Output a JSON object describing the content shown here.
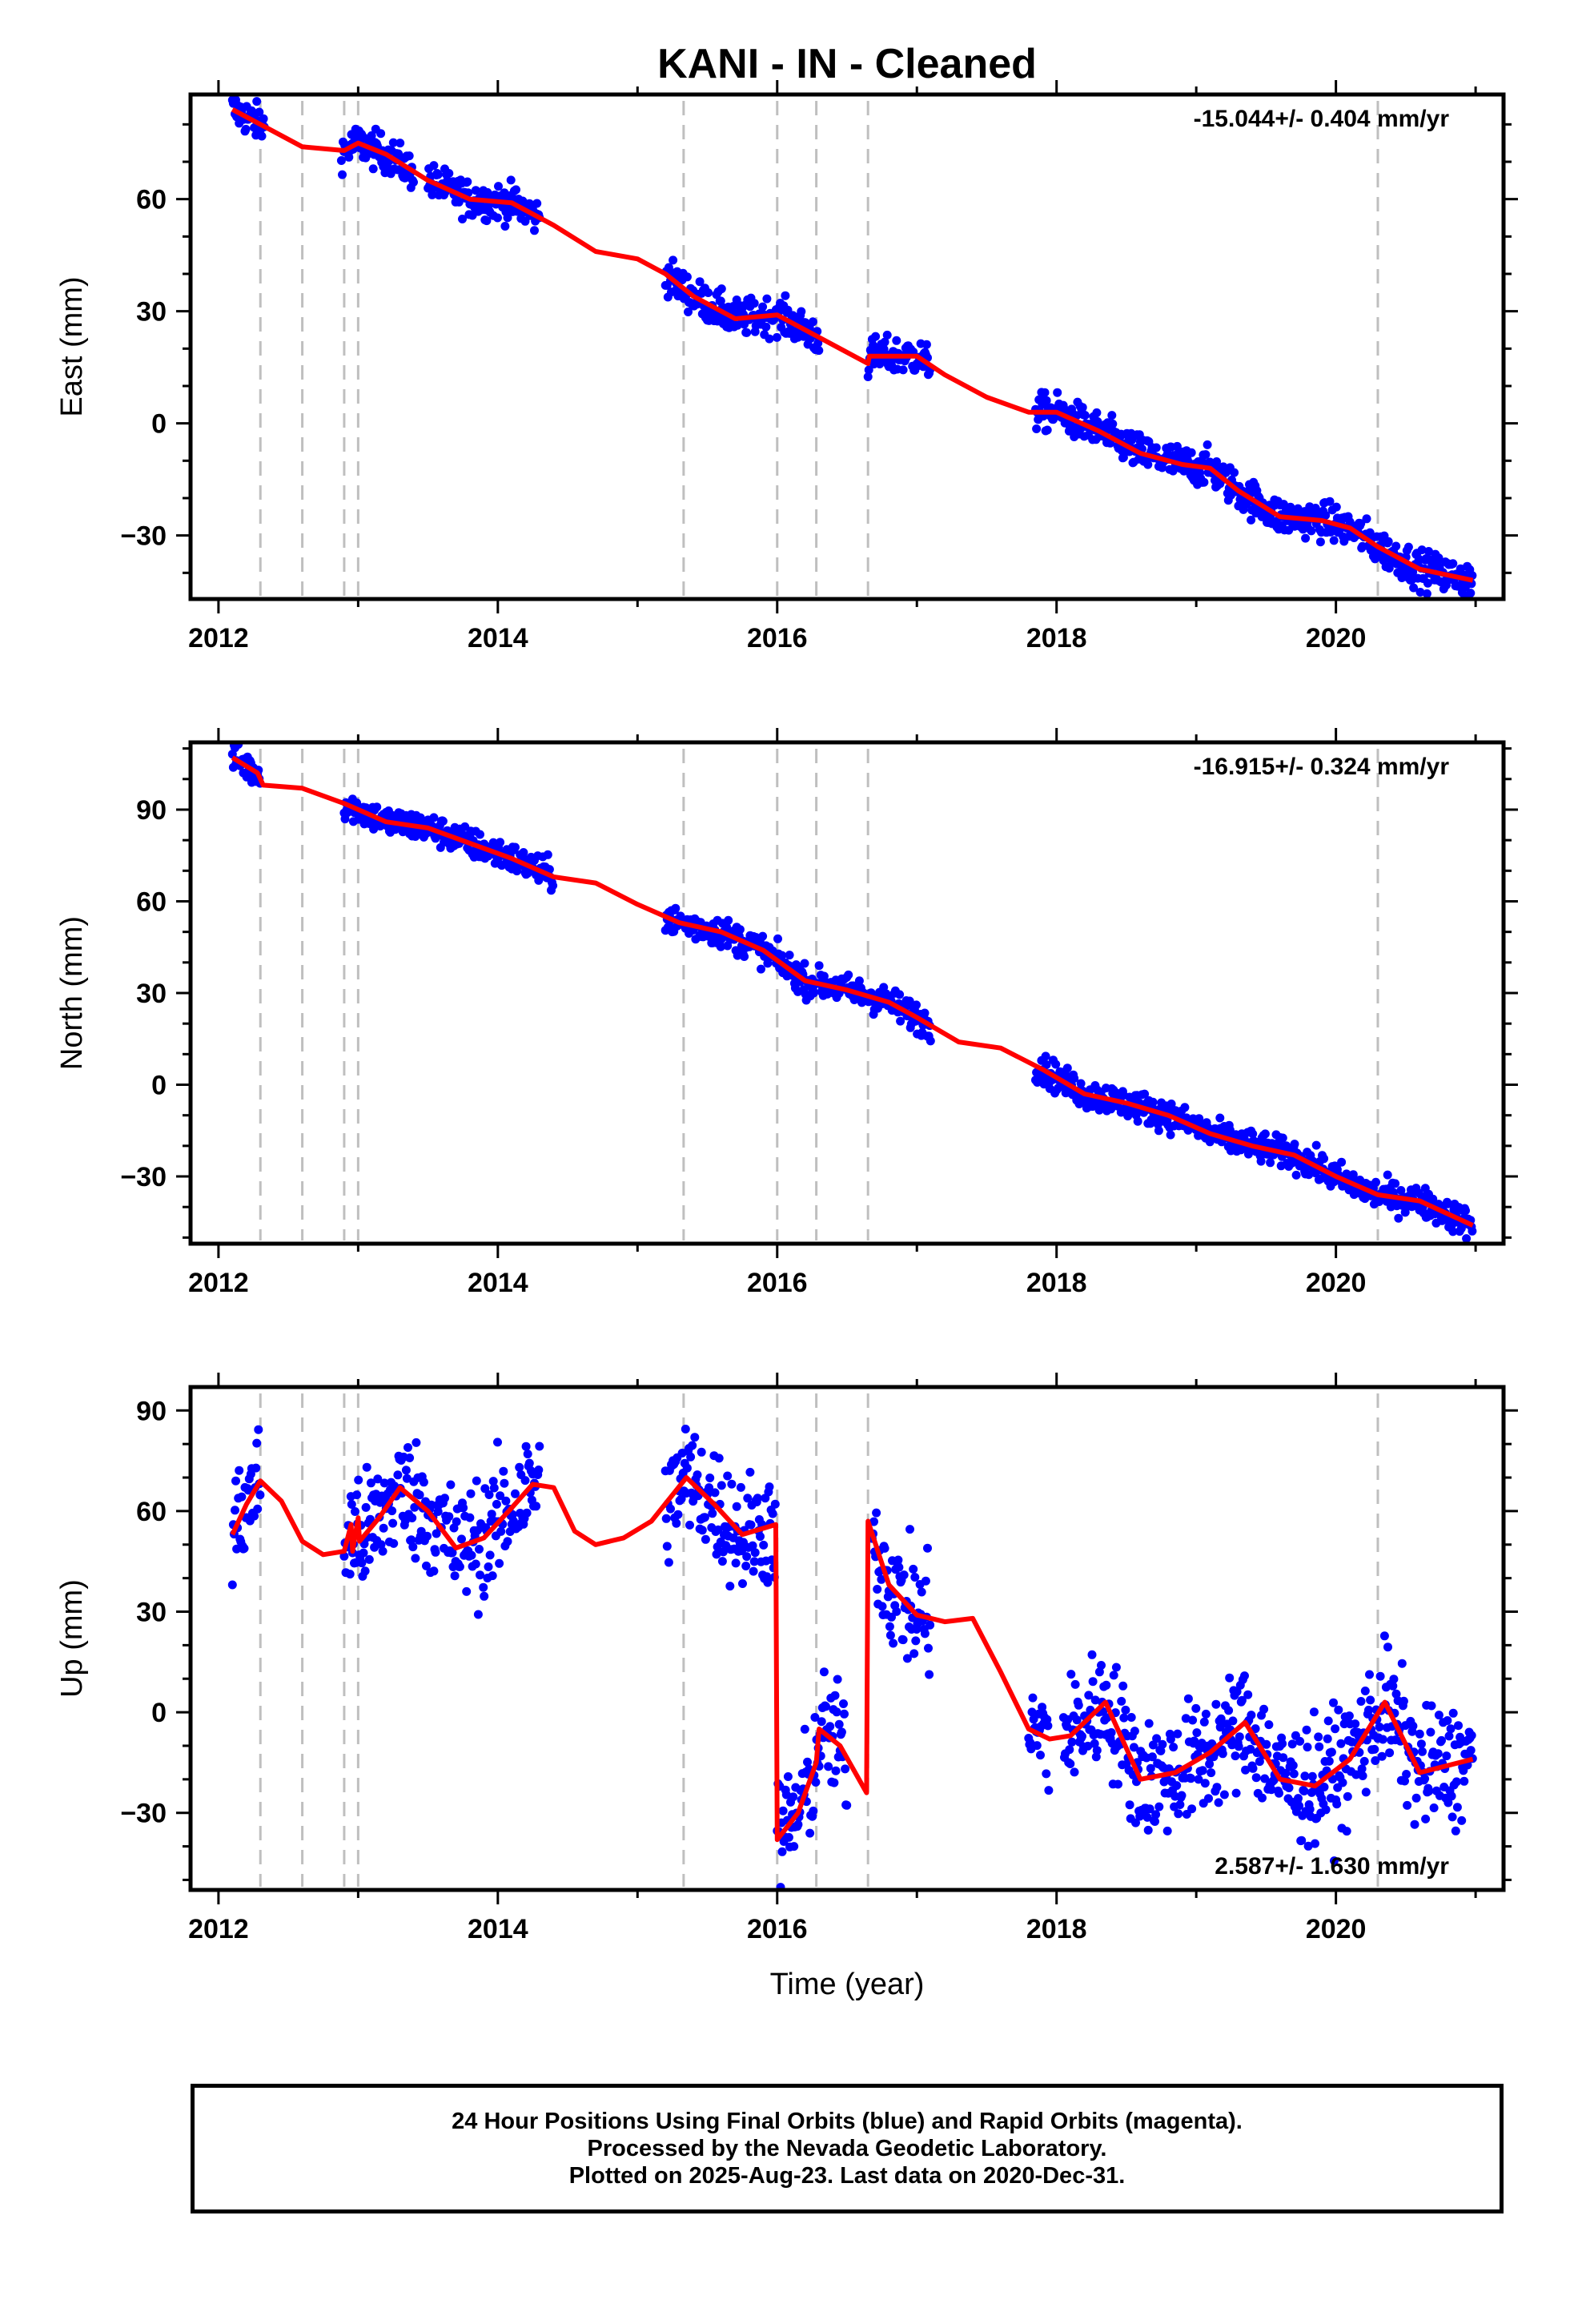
{
  "chart_data": {
    "type": "scatter",
    "title": "KANI  - IN - Cleaned",
    "xlabel": "Time (year)",
    "xlim": [
      2011.8,
      2021.2
    ],
    "xticks": [
      2012,
      2014,
      2016,
      2018,
      2020
    ],
    "breaks": [
      2012.3,
      2012.6,
      2012.9,
      2013.0,
      2015.33,
      2016.0,
      2016.28,
      2016.65,
      2020.3
    ],
    "colors": {
      "observed": "#0000ff",
      "model": "#ff0000",
      "breaks": "#bfbfbf",
      "frame": "#000000"
    },
    "panels": [
      {
        "ylabel": "East (mm)",
        "rate": "-15.044+/- 0.404 mm/yr",
        "ylim": [
          -47,
          88
        ],
        "yticks": [
          -30,
          0,
          30,
          60
        ],
        "scatter_spread": 2.5,
        "observed_segments": [
          [
            2012.1,
            2012.33
          ],
          [
            2012.88,
            2013.4
          ],
          [
            2013.5,
            2014.3
          ],
          [
            2015.2,
            2016.3
          ],
          [
            2016.65,
            2017.1
          ],
          [
            2017.85,
            2020.98
          ]
        ],
        "model": {
          "x": [
            2012.1,
            2012.3,
            2012.6,
            2012.9,
            2013.0,
            2013.2,
            2013.5,
            2013.8,
            2014.1,
            2014.4,
            2014.7,
            2015.0,
            2015.2,
            2015.4,
            2015.7,
            2016.0,
            2016.2,
            2016.4,
            2016.65,
            2016.66,
            2017.0,
            2017.2,
            2017.5,
            2017.8,
            2018.0,
            2018.3,
            2018.6,
            2018.9,
            2019.1,
            2019.3,
            2019.6,
            2019.9,
            2020.1,
            2020.3,
            2020.6,
            2020.98
          ],
          "y": [
            84,
            80,
            74,
            73,
            75,
            72,
            65,
            60,
            59,
            53,
            46,
            44,
            40,
            34,
            28,
            29,
            25,
            21,
            16,
            18,
            18,
            13,
            7,
            3,
            3,
            -2,
            -8,
            -11,
            -12,
            -18,
            -25,
            -26,
            -28,
            -33,
            -39,
            -42
          ]
        }
      },
      {
        "ylabel": "North (mm)",
        "rate": "-16.915+/- 0.324 mm/yr",
        "ylim": [
          -52,
          112
        ],
        "yticks": [
          -30,
          0,
          30,
          60,
          90
        ],
        "scatter_spread": 2.5,
        "observed_segments": [
          [
            2012.1,
            2012.3
          ],
          [
            2012.9,
            2013.5
          ],
          [
            2013.5,
            2014.4
          ],
          [
            2015.2,
            2016.28
          ],
          [
            2016.3,
            2017.1
          ],
          [
            2017.85,
            2020.98
          ]
        ],
        "model": {
          "x": [
            2012.1,
            2012.28,
            2012.32,
            2012.6,
            2012.9,
            2013.2,
            2013.5,
            2013.8,
            2014.1,
            2014.4,
            2014.7,
            2015.0,
            2015.3,
            2015.6,
            2015.9,
            2016.2,
            2016.5,
            2016.8,
            2017.0,
            2017.3,
            2017.6,
            2017.9,
            2018.2,
            2018.5,
            2018.8,
            2019.1,
            2019.4,
            2019.7,
            2020.0,
            2020.3,
            2020.6,
            2020.98
          ],
          "y": [
            107,
            102,
            98,
            97,
            92,
            86,
            84,
            79,
            74,
            68,
            66,
            59,
            53,
            50,
            44,
            34,
            31,
            27,
            22,
            14,
            12,
            5,
            -3,
            -6,
            -10,
            -16,
            -20,
            -23,
            -30,
            -36,
            -38,
            -46
          ]
        }
      },
      {
        "ylabel": "Up (mm)",
        "rate": "2.587+/- 1.630 mm/yr",
        "ylim": [
          -53,
          97
        ],
        "yticks": [
          -30,
          0,
          30,
          60,
          90
        ],
        "scatter_spread": 9,
        "observed_segments": [
          [
            2012.1,
            2012.3
          ],
          [
            2012.9,
            2014.3
          ],
          [
            2015.2,
            2015.99
          ],
          [
            2016.0,
            2016.5
          ],
          [
            2016.68,
            2017.1
          ],
          [
            2017.8,
            2017.95
          ],
          [
            2018.05,
            2020.98
          ]
        ],
        "model": {
          "x": [
            2012.1,
            2012.2,
            2012.3,
            2012.45,
            2012.6,
            2012.75,
            2012.9,
            2012.95,
            2012.96,
            2013.0,
            2013.01,
            2013.15,
            2013.3,
            2013.5,
            2013.7,
            2013.9,
            2014.1,
            2014.25,
            2014.4,
            2014.55,
            2014.7,
            2014.9,
            2015.1,
            2015.35,
            2015.55,
            2015.75,
            2015.99,
            2016.0,
            2016.15,
            2016.28,
            2016.3,
            2016.45,
            2016.64,
            2016.65,
            2016.8,
            2017.0,
            2017.2,
            2017.4,
            2017.6,
            2017.8,
            2017.95,
            2018.1,
            2018.35,
            2018.6,
            2018.85,
            2019.1,
            2019.35,
            2019.6,
            2019.85,
            2020.1,
            2020.35,
            2020.6,
            2020.98
          ],
          "y": [
            53,
            62,
            69,
            63,
            51,
            47,
            48,
            56,
            48,
            58,
            51,
            58,
            67,
            60,
            49,
            52,
            61,
            68,
            67,
            54,
            50,
            52,
            57,
            70,
            62,
            53,
            56,
            -38,
            -30,
            -15,
            -5,
            -10,
            -24,
            57,
            38,
            29,
            27,
            28,
            12,
            -5,
            -8,
            -7,
            3,
            -20,
            -18,
            -12,
            -3,
            -20,
            -22,
            -14,
            3,
            -18,
            -14
          ]
        }
      }
    ]
  },
  "footer": {
    "line1": "24 Hour Positions Using Final Orbits (blue) and Rapid Orbits (magenta).",
    "line2": "Processed by the Nevada Geodetic Laboratory.",
    "line3": "Plotted on 2025-Aug-23. Last data on 2020-Dec-31."
  }
}
